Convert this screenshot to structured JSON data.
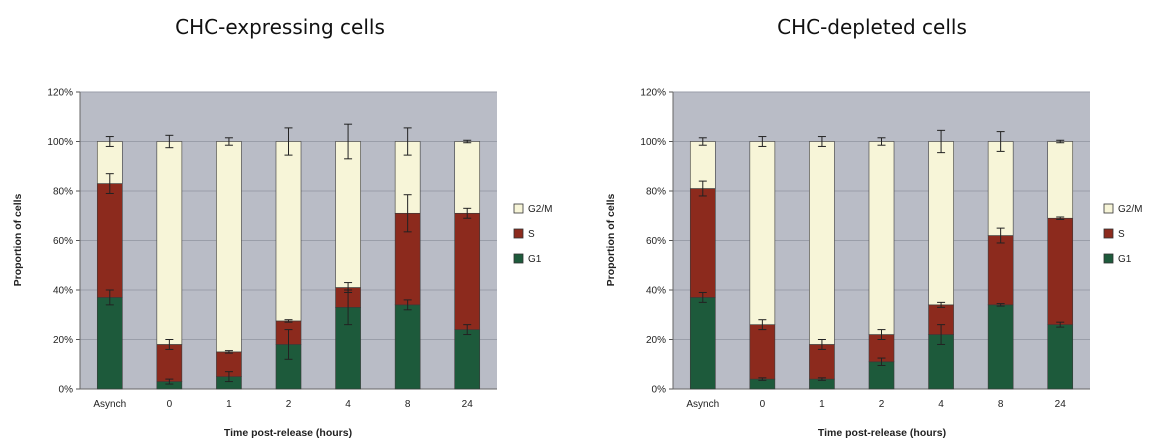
{
  "chart_data": [
    {
      "type": "bar",
      "stacked": true,
      "title": "CHC-expressing cells",
      "xlabel": "Time post-release (hours)",
      "ylabel": "Proportion of cells",
      "ylim": [
        0,
        1.2
      ],
      "yticks": [
        "0%",
        "20%",
        "40%",
        "60%",
        "80%",
        "100%",
        "120%"
      ],
      "grid": true,
      "legend_position": "right",
      "categories": [
        "Asynch",
        "0",
        "1",
        "2",
        "4",
        "8",
        "24"
      ],
      "series": [
        {
          "name": "G1",
          "color": "#1d5a3b",
          "values": [
            0.37,
            0.03,
            0.05,
            0.18,
            0.33,
            0.34,
            0.24
          ],
          "errors": [
            0.03,
            0.01,
            0.02,
            0.06,
            0.07,
            0.02,
            0.02
          ]
        },
        {
          "name": "S",
          "color": "#8c2a1d",
          "values": [
            0.46,
            0.15,
            0.1,
            0.095,
            0.08,
            0.37,
            0.47
          ],
          "errors": [
            0.04,
            0.02,
            0.005,
            0.005,
            0.02,
            0.075,
            0.02
          ]
        },
        {
          "name": "G2/M",
          "color": "#f7f5d8",
          "values": [
            0.17,
            0.82,
            0.85,
            0.725,
            0.59,
            0.29,
            0.29
          ],
          "errors": [
            0.02,
            0.025,
            0.015,
            0.055,
            0.07,
            0.055,
            0.005
          ]
        }
      ]
    },
    {
      "type": "bar",
      "stacked": true,
      "title": "CHC-depleted cells",
      "xlabel": "Time post-release (hours)",
      "ylabel": "Proportion of cells",
      "ylim": [
        0,
        1.2
      ],
      "yticks": [
        "0%",
        "20%",
        "40%",
        "60%",
        "80%",
        "100%",
        "120%"
      ],
      "grid": true,
      "legend_position": "right",
      "categories": [
        "Asynch",
        "0",
        "1",
        "2",
        "4",
        "8",
        "24"
      ],
      "series": [
        {
          "name": "G1",
          "color": "#1d5a3b",
          "values": [
            0.37,
            0.04,
            0.04,
            0.11,
            0.22,
            0.34,
            0.26
          ],
          "errors": [
            0.02,
            0.005,
            0.005,
            0.015,
            0.04,
            0.005,
            0.01
          ]
        },
        {
          "name": "S",
          "color": "#8c2a1d",
          "values": [
            0.44,
            0.22,
            0.14,
            0.11,
            0.12,
            0.28,
            0.43
          ],
          "errors": [
            0.03,
            0.02,
            0.02,
            0.02,
            0.01,
            0.03,
            0.005
          ]
        },
        {
          "name": "G2/M",
          "color": "#f7f5d8",
          "values": [
            0.19,
            0.74,
            0.82,
            0.78,
            0.66,
            0.38,
            0.31
          ],
          "errors": [
            0.015,
            0.02,
            0.02,
            0.015,
            0.045,
            0.04,
            0.005
          ]
        }
      ]
    }
  ]
}
